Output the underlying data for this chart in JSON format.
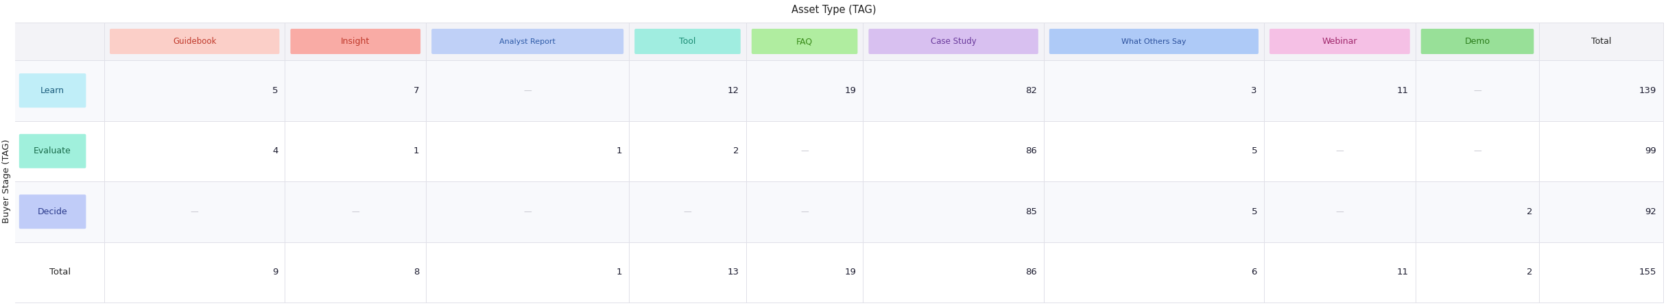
{
  "title": "Asset Type (TAG)",
  "y_axis_label": "Buyer Stage (TAG)",
  "col_headers": [
    "Guidebook",
    "Insight",
    "Analyst Report",
    "Tool",
    "FAQ",
    "Case Study",
    "What Others Say",
    "Webinar",
    "Demo",
    "Total"
  ],
  "col_colors": [
    "#FBCFC8",
    "#F9ABA5",
    "#BFD0F7",
    "#A0EDE0",
    "#B0EDA0",
    "#D8C0F0",
    "#AECAF7",
    "#F5C0E5",
    "#98E098",
    "#ffffff"
  ],
  "col_text_colors": [
    "#C0392B",
    "#C0392B",
    "#2E5BA8",
    "#1A8C74",
    "#3A8C1A",
    "#6A3A9C",
    "#2A4F9C",
    "#A0286C",
    "#2A7C1A",
    "#222222"
  ],
  "row_labels": [
    "Learn",
    "Evaluate",
    "Decide",
    "Total"
  ],
  "row_colors": [
    "#C0EEF8",
    "#A0F0DC",
    "#C0CCF8",
    "#ffffff"
  ],
  "row_text_colors": [
    "#1A5C7C",
    "#1A6C4C",
    "#2A3A8C",
    "#222222"
  ],
  "data": [
    [
      5,
      7,
      null,
      12,
      19,
      82,
      3,
      11,
      null,
      139
    ],
    [
      4,
      1,
      1,
      2,
      null,
      86,
      5,
      null,
      null,
      99
    ],
    [
      null,
      null,
      null,
      null,
      null,
      85,
      5,
      null,
      2,
      92
    ],
    [
      9,
      8,
      1,
      13,
      19,
      86,
      6,
      11,
      2,
      155
    ]
  ],
  "bg_color": "#FFFFFF",
  "grid_color": "#E0E0E8",
  "header_bg": "#F3F3F7",
  "null_color": "#C8C8D0",
  "null_symbol": "—"
}
